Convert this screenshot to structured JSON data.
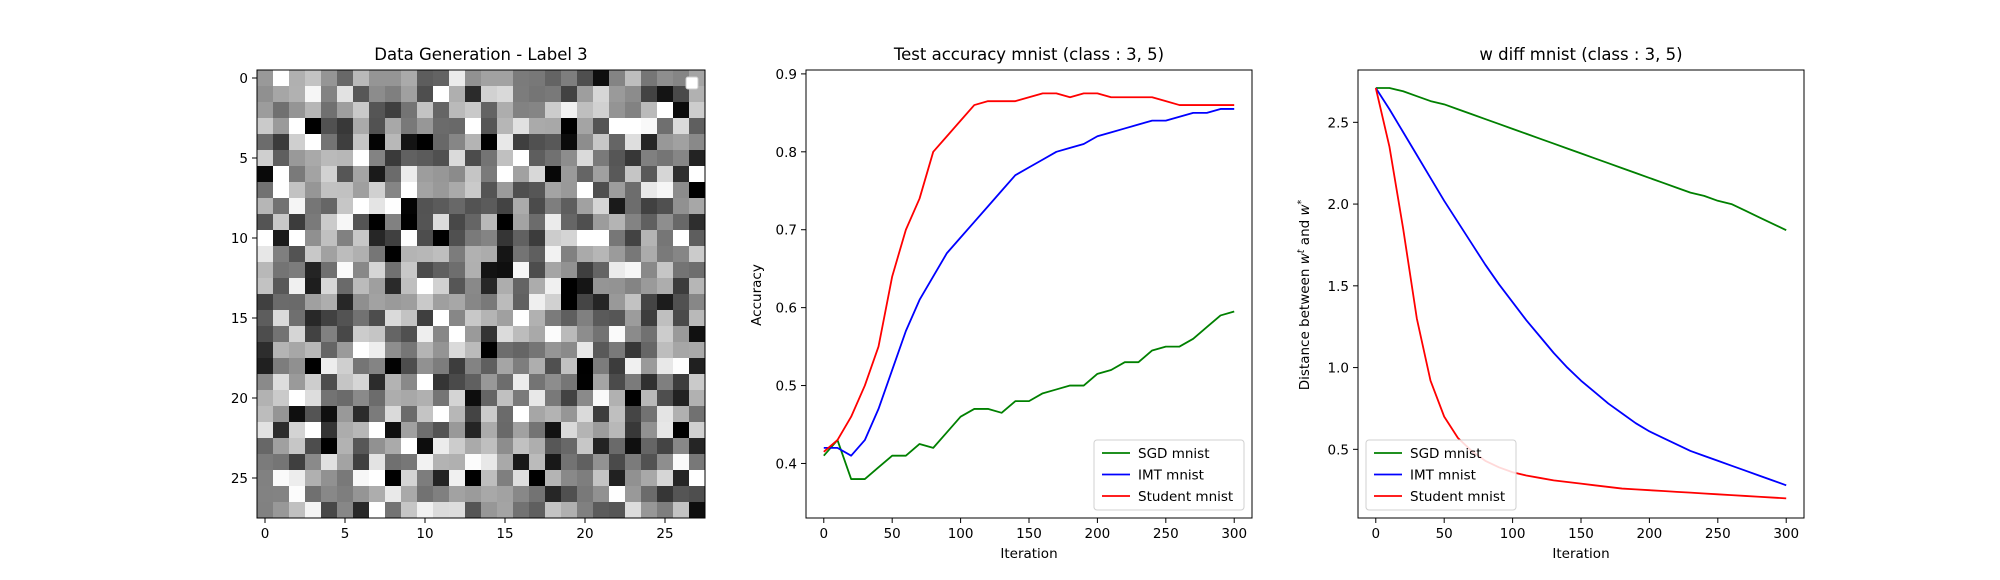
{
  "chart_data": [
    {
      "type": "heatmap",
      "title": "Data Generation - Label 3",
      "xlabel": "",
      "ylabel": "",
      "xlim": [
        -0.5,
        27.5
      ],
      "ylim": [
        27.5,
        -0.5
      ],
      "xticks": [
        "0",
        "5",
        "10",
        "15",
        "20",
        "25"
      ],
      "yticks": [
        "0",
        "5",
        "10",
        "15",
        "20",
        "25"
      ],
      "grid": false,
      "colormap": "gray",
      "rows": 28,
      "cols": 28,
      "pixel_values": "28x28 grayscale random noise (values 0–1), individual pixels not legible",
      "legend": "empty legend box, top-right"
    },
    {
      "type": "line",
      "title": "Test accuracy mnist (class : 3, 5)",
      "xlabel": "Iteration",
      "ylabel": "Accuracy",
      "xlim": [
        -13,
        313
      ],
      "ylim": [
        0.33,
        0.905
      ],
      "xticks": [
        "0",
        "50",
        "100",
        "150",
        "200",
        "250",
        "300"
      ],
      "yticks": [
        "0.4",
        "0.5",
        "0.6",
        "0.7",
        "0.8",
        "0.9"
      ],
      "grid": false,
      "legend_position": "lower right",
      "x": [
        0,
        10,
        20,
        30,
        40,
        50,
        60,
        70,
        80,
        90,
        100,
        110,
        120,
        130,
        140,
        150,
        160,
        170,
        180,
        190,
        200,
        210,
        220,
        230,
        240,
        250,
        260,
        270,
        280,
        290,
        300
      ],
      "series": [
        {
          "name": "SGD mnist",
          "color": "#008000",
          "values": [
            0.41,
            0.43,
            0.38,
            0.38,
            0.395,
            0.41,
            0.41,
            0.425,
            0.42,
            0.44,
            0.46,
            0.47,
            0.47,
            0.465,
            0.48,
            0.48,
            0.49,
            0.495,
            0.5,
            0.5,
            0.515,
            0.52,
            0.53,
            0.53,
            0.545,
            0.55,
            0.55,
            0.56,
            0.575,
            0.59,
            0.595
          ]
        },
        {
          "name": "IMT mnist",
          "color": "#0000ff",
          "values": [
            0.42,
            0.42,
            0.41,
            0.43,
            0.47,
            0.52,
            0.57,
            0.61,
            0.64,
            0.67,
            0.69,
            0.71,
            0.73,
            0.75,
            0.77,
            0.78,
            0.79,
            0.8,
            0.805,
            0.81,
            0.82,
            0.825,
            0.83,
            0.835,
            0.84,
            0.84,
            0.845,
            0.85,
            0.85,
            0.855,
            0.855
          ]
        },
        {
          "name": "Student mnist",
          "color": "#ff0000",
          "values": [
            0.415,
            0.43,
            0.46,
            0.5,
            0.55,
            0.64,
            0.7,
            0.74,
            0.8,
            0.82,
            0.84,
            0.86,
            0.865,
            0.865,
            0.865,
            0.87,
            0.875,
            0.875,
            0.87,
            0.875,
            0.875,
            0.87,
            0.87,
            0.87,
            0.87,
            0.865,
            0.86,
            0.86,
            0.86,
            0.86,
            0.86
          ]
        }
      ]
    },
    {
      "type": "line",
      "title": "w diff mnist (class : 3, 5)",
      "xlabel": "Iteration",
      "ylabel": "Distance between w^t and w^*",
      "xlim": [
        -13,
        313
      ],
      "ylim": [
        0.08,
        2.82
      ],
      "xticks": [
        "0",
        "50",
        "100",
        "150",
        "200",
        "250",
        "300"
      ],
      "yticks": [
        "0.5",
        "1.0",
        "1.5",
        "2.0",
        "2.5"
      ],
      "grid": false,
      "legend_position": "lower left",
      "x": [
        0,
        10,
        20,
        30,
        40,
        50,
        60,
        70,
        80,
        90,
        100,
        110,
        120,
        130,
        140,
        150,
        160,
        170,
        180,
        190,
        200,
        210,
        220,
        230,
        240,
        250,
        260,
        270,
        280,
        290,
        300
      ],
      "series": [
        {
          "name": "SGD mnist",
          "color": "#008000",
          "values": [
            2.71,
            2.71,
            2.69,
            2.66,
            2.63,
            2.61,
            2.58,
            2.55,
            2.52,
            2.49,
            2.46,
            2.43,
            2.4,
            2.37,
            2.34,
            2.31,
            2.28,
            2.25,
            2.22,
            2.19,
            2.16,
            2.13,
            2.1,
            2.07,
            2.05,
            2.02,
            2.0,
            1.96,
            1.92,
            1.88,
            1.84
          ]
        },
        {
          "name": "IMT mnist",
          "color": "#0000ff",
          "values": [
            2.71,
            2.58,
            2.44,
            2.3,
            2.16,
            2.02,
            1.89,
            1.76,
            1.63,
            1.51,
            1.4,
            1.29,
            1.19,
            1.09,
            1.0,
            0.92,
            0.85,
            0.78,
            0.72,
            0.66,
            0.61,
            0.57,
            0.53,
            0.49,
            0.46,
            0.43,
            0.4,
            0.37,
            0.34,
            0.31,
            0.28
          ]
        },
        {
          "name": "Student mnist",
          "color": "#ff0000",
          "values": [
            2.71,
            2.35,
            1.85,
            1.3,
            0.92,
            0.7,
            0.57,
            0.49,
            0.43,
            0.39,
            0.36,
            0.34,
            0.325,
            0.31,
            0.3,
            0.29,
            0.28,
            0.27,
            0.26,
            0.255,
            0.25,
            0.245,
            0.24,
            0.235,
            0.23,
            0.225,
            0.22,
            0.215,
            0.21,
            0.205,
            0.2
          ]
        }
      ]
    }
  ]
}
